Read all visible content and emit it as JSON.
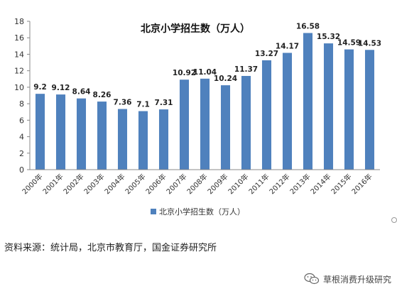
{
  "chart_data": {
    "type": "bar",
    "title": "北京小学招生数（万人）",
    "categories": [
      "2000年",
      "2001年",
      "2002年",
      "2003年",
      "2004年",
      "2005年",
      "2006年",
      "2007年",
      "2008年",
      "2009年",
      "2010年",
      "2011年",
      "2012年",
      "2013年",
      "2014年",
      "2015年",
      "2016年"
    ],
    "series": [
      {
        "name": "北京小学招生数（万人）",
        "values": [
          9.2,
          9.12,
          8.64,
          8.26,
          7.36,
          7.1,
          7.31,
          10.92,
          11.04,
          10.24,
          11.37,
          13.27,
          14.17,
          16.58,
          15.32,
          14.59,
          14.53
        ],
        "labels": [
          "9.2",
          "9.12",
          "8.64",
          "8.26",
          "7.36",
          "7.1",
          "7.31",
          "10.92",
          "11.04",
          "10.24",
          "11.37",
          "13.27",
          "14.17",
          "16.58",
          "15.32",
          "14.59",
          "14.53"
        ]
      }
    ],
    "ylim": [
      0,
      18
    ],
    "yticks": [
      0,
      2,
      4,
      6,
      8,
      10,
      12,
      14,
      16,
      18
    ],
    "ytick_labels": [
      "0",
      "2",
      "4",
      "6",
      "8",
      "10",
      "12",
      "14",
      "16",
      "18"
    ],
    "grid": false,
    "legend_position": "bottom",
    "bar_color": "#4F81BD"
  },
  "source_note": "资料来源：统计局，北京市教育厅，国金证券研究所",
  "watermark": {
    "icon": "wechat-icon",
    "text": "草根消费升级研究"
  }
}
